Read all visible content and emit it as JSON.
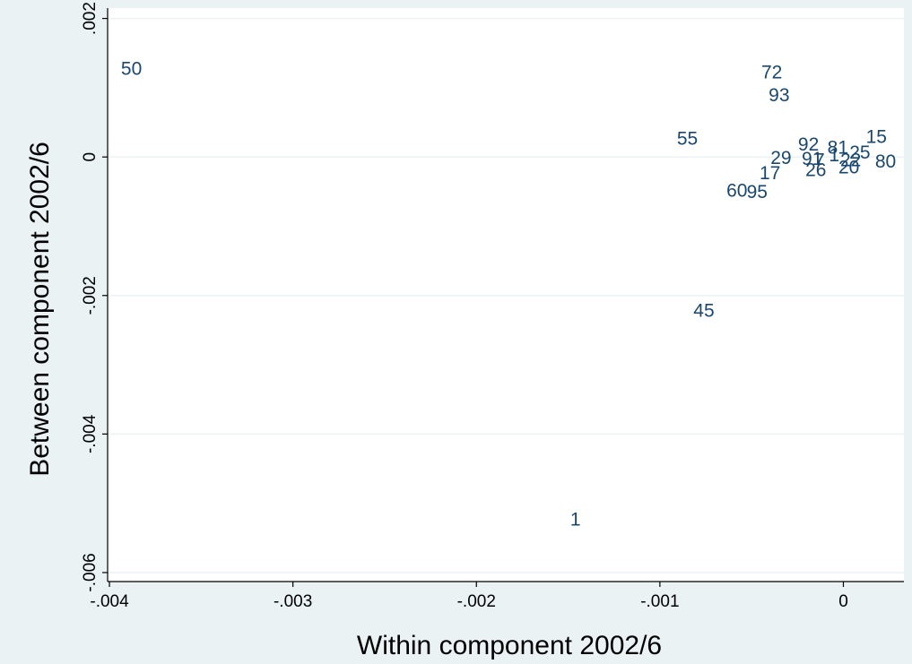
{
  "chart_data": {
    "type": "scatter",
    "xlabel": "Within component 2002/6",
    "ylabel": "Between component 2002/6",
    "xlim": [
      -0.00401,
      0.00033
    ],
    "ylim": [
      -0.00613,
      0.00215
    ],
    "grid": true,
    "legend": "none",
    "marker_color": "#1a476f",
    "background_color": "#eaf2f3",
    "plot_background_color": "#ffffff",
    "gridline_color": "#eaf2f3",
    "x_ticks": [
      {
        "value": -0.004,
        "label": "-.004"
      },
      {
        "value": -0.003,
        "label": "-.003"
      },
      {
        "value": -0.002,
        "label": "-.002"
      },
      {
        "value": -0.001,
        "label": "-.001"
      },
      {
        "value": 0,
        "label": "0"
      }
    ],
    "y_ticks": [
      {
        "value": 0.002,
        "label": ".002"
      },
      {
        "value": 0,
        "label": "0"
      },
      {
        "value": -0.002,
        "label": "-.002"
      },
      {
        "value": -0.004,
        "label": "-.004"
      },
      {
        "value": -0.006,
        "label": "-.006"
      }
    ],
    "points": [
      {
        "label": "50",
        "x": -0.00388,
        "y": 0.00127
      },
      {
        "label": "72",
        "x": -0.00039,
        "y": 0.00122
      },
      {
        "label": "93",
        "x": -0.00035,
        "y": 0.00089
      },
      {
        "label": "55",
        "x": -0.00085,
        "y": 0.00026
      },
      {
        "label": "15",
        "x": 0.00018,
        "y": 0.00029
      },
      {
        "label": "92",
        "x": -0.00019,
        "y": 0.00018
      },
      {
        "label": "81",
        "x": -3e-05,
        "y": 0.00013
      },
      {
        "label": "25",
        "x": 9e-05,
        "y": 6e-05
      },
      {
        "label": "29",
        "x": -0.00034,
        "y": -2e-05
      },
      {
        "label": "91",
        "x": -0.00017,
        "y": -3e-05
      },
      {
        "label": "1",
        "x": -5e-05,
        "y": 2e-05
      },
      {
        "label": "22",
        "x": 4e-05,
        "y": -5e-05
      },
      {
        "label": "7",
        "x": -0.00013,
        "y": -5e-05
      },
      {
        "label": "80",
        "x": 0.00023,
        "y": -7e-05
      },
      {
        "label": "26",
        "x": -0.00015,
        "y": -0.00019
      },
      {
        "label": "20",
        "x": 3e-05,
        "y": -0.00015
      },
      {
        "label": "17",
        "x": -0.0004,
        "y": -0.00024
      },
      {
        "label": "60",
        "x": -0.00058,
        "y": -0.00049
      },
      {
        "label": "95",
        "x": -0.00047,
        "y": -0.00051
      },
      {
        "label": "45",
        "x": -0.00076,
        "y": -0.00222
      },
      {
        "label": "1",
        "x": -0.00146,
        "y": -0.00524
      }
    ]
  }
}
